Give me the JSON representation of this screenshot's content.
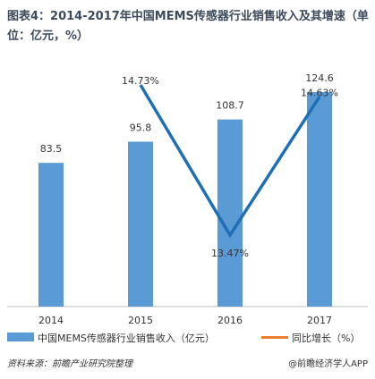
{
  "title": "图表4：2014-2017年中国MEMS传感器行业销售收入及其增速（单位：亿元，%）",
  "source": "资料来源：前瞻产业研究院整理",
  "credit": "@前瞻经济学人APP",
  "colors": {
    "bar": "#5b9bd5",
    "line": "#1f6fb5",
    "axis": "#bfbfbf"
  },
  "chart_data": {
    "type": "bar",
    "title": "图表4：2014-2017年中国MEMS传感器行业销售收入及其增速（单位：亿元，%）",
    "categories": [
      "2014",
      "2015",
      "2016",
      "2017"
    ],
    "series": [
      {
        "name": "中国MEMS传感器行业销售收入（亿元）",
        "type": "bar",
        "values": [
          83.5,
          95.8,
          108.7,
          124.6
        ],
        "labels": [
          "83.5",
          "95.8",
          "108.7",
          "124.6"
        ]
      },
      {
        "name": "同比增长（%）",
        "type": "line",
        "x": [
          "2015",
          "2016",
          "2017"
        ],
        "values": [
          14.73,
          13.47,
          14.63
        ],
        "labels": [
          "14.73%",
          "13.47%",
          "14.63%"
        ]
      }
    ],
    "ylim_bar": [
      0,
      130
    ],
    "ylim_line": [
      13.3,
      14.9
    ],
    "legend": "bottom"
  }
}
